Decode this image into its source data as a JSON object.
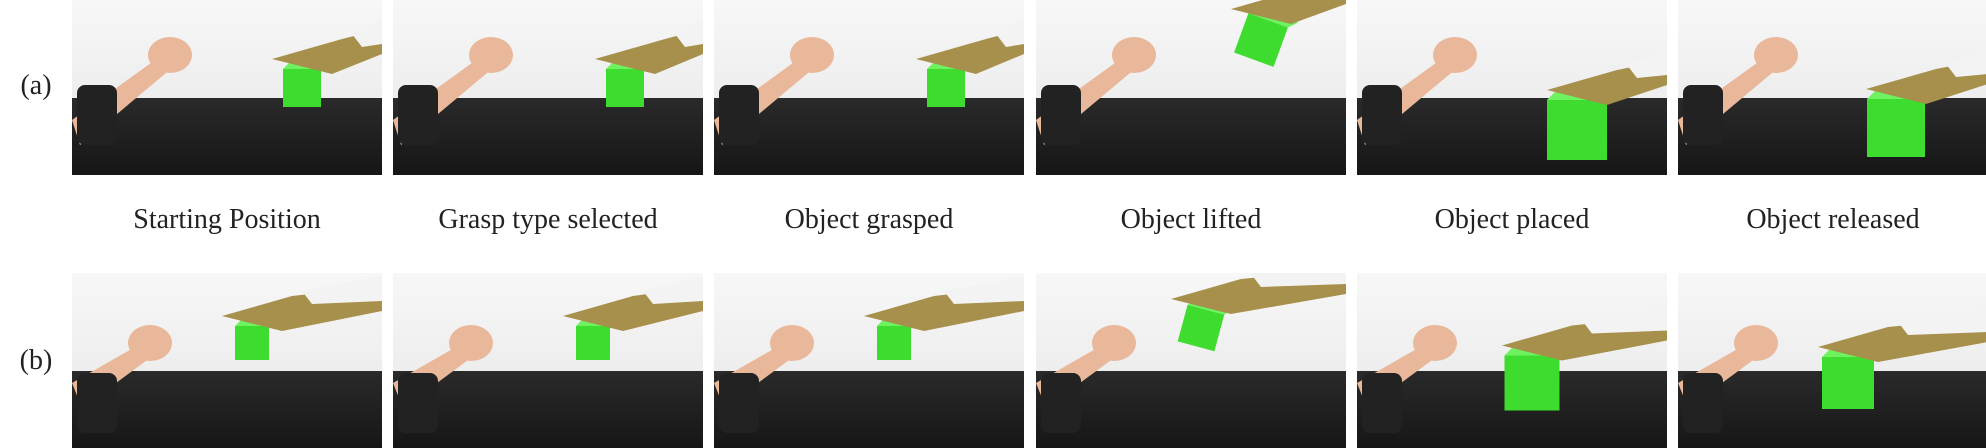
{
  "row_labels": {
    "a": "(a)",
    "b": "(b)"
  },
  "captions": [
    "Starting Position",
    "Grasp type selected",
    "Object grasped",
    "Object lifted",
    "Object placed",
    "Object released"
  ],
  "colors": {
    "cube": "#3ddc2f",
    "skin": "#e9b79a",
    "robot_hand": "#a7904c",
    "table": "#1b1b1b",
    "band": "#222222"
  }
}
